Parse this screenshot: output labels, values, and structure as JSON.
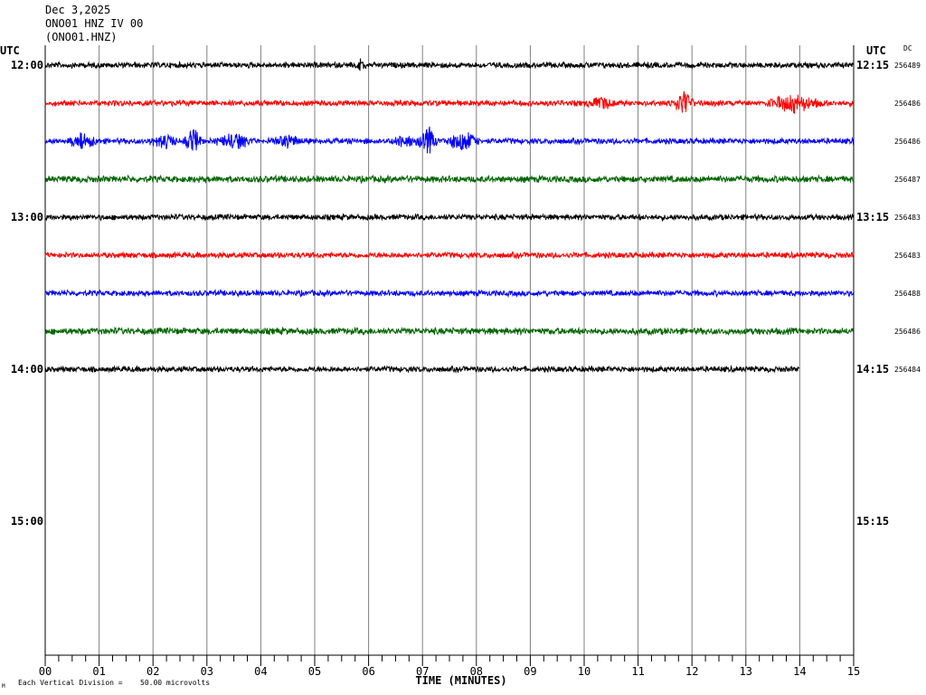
{
  "header": {
    "date": "Dec 3,2025",
    "station_line": "ONO01 HNZ IV 00",
    "channel_line": "(ONO01.HNZ)"
  },
  "chart_data": {
    "type": "line",
    "title": "",
    "xlabel": "TIME (MINUTES)",
    "xlim": [
      0,
      15
    ],
    "x_tick_labels": [
      "00",
      "01",
      "02",
      "03",
      "04",
      "05",
      "06",
      "07",
      "08",
      "09",
      "10",
      "11",
      "12",
      "13",
      "14",
      "15"
    ],
    "minor_ticks_per_minute": 4,
    "grid": "vertical",
    "left_axis_label": "UTC",
    "right_axis_label": "UTC",
    "dc_label": "DC",
    "hour_labels_left": [
      "12:00",
      "13:00",
      "14:00",
      "15:00"
    ],
    "hour_labels_right": [
      "12:15",
      "13:15",
      "14:15",
      "15:15"
    ],
    "trace_colors": [
      "#000000",
      "#ff0000",
      "#0000ff",
      "#006400"
    ],
    "traces": [
      {
        "start": "12:00",
        "color": "#000000",
        "dc": "256489",
        "end_minute": 15,
        "noise": 3,
        "bursts": [
          {
            "minute": 5.85,
            "amp": 6,
            "width": 0.15
          }
        ]
      },
      {
        "start": "12:15",
        "color": "#ff0000",
        "dc": "256486",
        "end_minute": 15,
        "noise": 3,
        "bursts": [
          {
            "minute": 10.3,
            "amp": 7,
            "width": 0.3
          },
          {
            "minute": 11.85,
            "amp": 18,
            "width": 0.2
          },
          {
            "minute": 13.9,
            "amp": 11,
            "width": 0.6
          }
        ]
      },
      {
        "start": "12:30",
        "color": "#0000ff",
        "dc": "256486",
        "end_minute": 15,
        "noise": 3,
        "bursts": [
          {
            "minute": 0.7,
            "amp": 9,
            "width": 0.3
          },
          {
            "minute": 2.2,
            "amp": 9,
            "width": 0.3
          },
          {
            "minute": 2.75,
            "amp": 14,
            "width": 0.2
          },
          {
            "minute": 3.5,
            "amp": 10,
            "width": 0.4
          },
          {
            "minute": 4.5,
            "amp": 6,
            "width": 0.3
          },
          {
            "minute": 6.7,
            "amp": 8,
            "width": 0.3
          },
          {
            "minute": 7.1,
            "amp": 20,
            "width": 0.2
          },
          {
            "minute": 7.75,
            "amp": 13,
            "width": 0.35
          }
        ]
      },
      {
        "start": "12:45",
        "color": "#006400",
        "dc": "256487",
        "end_minute": 15,
        "noise": 3.5,
        "bursts": []
      },
      {
        "start": "13:00",
        "color": "#000000",
        "dc": "256483",
        "end_minute": 15,
        "noise": 3,
        "bursts": []
      },
      {
        "start": "13:15",
        "color": "#ff0000",
        "dc": "256483",
        "end_minute": 15,
        "noise": 3,
        "bursts": []
      },
      {
        "start": "13:30",
        "color": "#0000ff",
        "dc": "256488",
        "end_minute": 15,
        "noise": 3,
        "bursts": []
      },
      {
        "start": "13:45",
        "color": "#006400",
        "dc": "256486",
        "end_minute": 15,
        "noise": 3.5,
        "bursts": []
      },
      {
        "start": "14:00",
        "color": "#000000",
        "dc": "256484",
        "end_minute": 14,
        "noise": 3,
        "bursts": []
      }
    ],
    "rows_total": 16,
    "scale_note": "Each Vertical Division =",
    "scale_value": "50.00 microvolts"
  }
}
